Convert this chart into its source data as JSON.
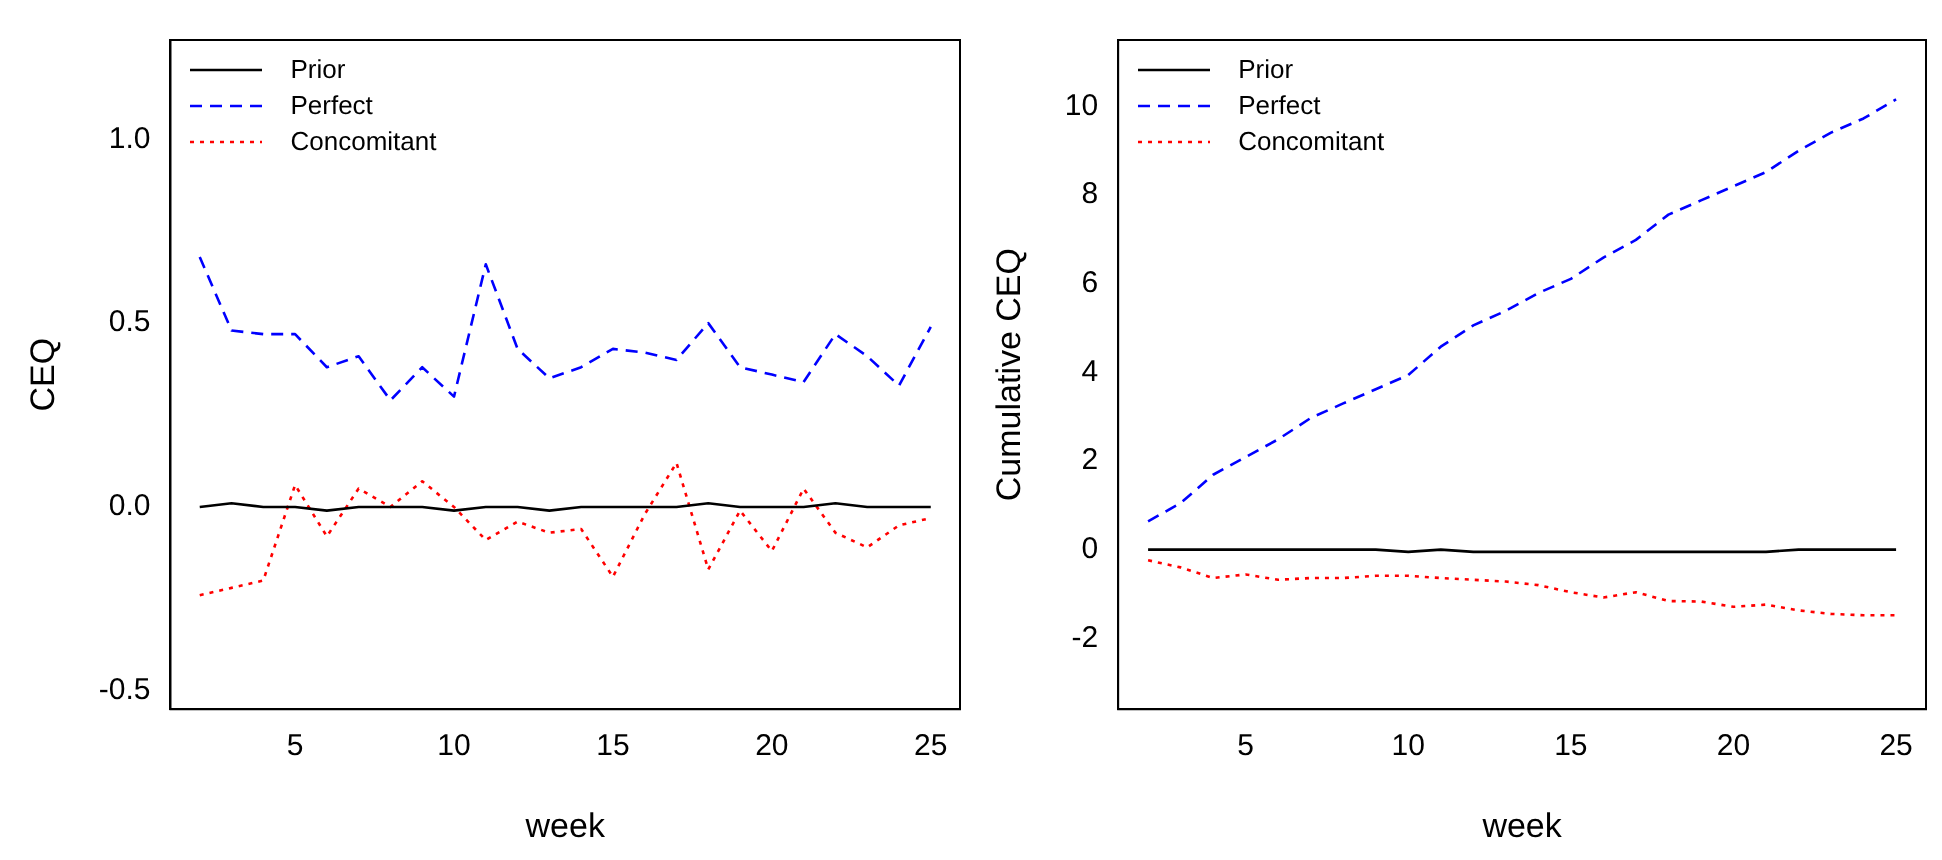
{
  "chart_data": [
    {
      "type": "line",
      "xlabel": "week",
      "ylabel": "CEQ",
      "x": [
        2,
        3,
        4,
        5,
        6,
        7,
        8,
        9,
        10,
        11,
        12,
        13,
        14,
        15,
        16,
        17,
        18,
        19,
        20,
        21,
        22,
        23,
        24,
        25
      ],
      "series": [
        {
          "name": "Prior",
          "color": "#000000",
          "line_style": "solid",
          "values": [
            0,
            0.01,
            0,
            0,
            -0.01,
            0,
            0,
            0,
            -0.01,
            0,
            0,
            -0.01,
            0,
            0,
            0,
            0,
            0.01,
            0,
            0,
            0,
            0.01,
            0,
            0,
            0
          ]
        },
        {
          "name": "Perfect",
          "color": "#0000ff",
          "line_style": "dashed",
          "values": [
            0.68,
            0.48,
            0.47,
            0.47,
            0.38,
            0.41,
            0.29,
            0.38,
            0.3,
            0.66,
            0.43,
            0.35,
            0.38,
            0.43,
            0.42,
            0.4,
            0.5,
            0.38,
            0.36,
            0.34,
            0.47,
            0.41,
            0.33,
            0.49
          ]
        },
        {
          "name": "Concomitant",
          "color": "#ff0000",
          "line_style": "dotted",
          "values": [
            -0.24,
            -0.22,
            -0.2,
            0.06,
            -0.08,
            0.05,
            0,
            0.07,
            0,
            -0.09,
            -0.04,
            -0.07,
            -0.06,
            -0.19,
            -0.02,
            0.12,
            -0.17,
            -0.01,
            -0.12,
            0.05,
            -0.07,
            -0.11,
            -0.05,
            -0.03
          ]
        }
      ],
      "xlim": [
        1.08,
        25.92
      ],
      "xticks": [
        5,
        10,
        15,
        20,
        25
      ],
      "ylim": [
        -0.55,
        1.27
      ],
      "yticks": [
        {
          "value": -0.5,
          "label": "-0.5"
        },
        {
          "value": 0,
          "label": "0.0"
        },
        {
          "value": 0.5,
          "label": "0.5"
        },
        {
          "value": 1,
          "label": "1.0"
        }
      ],
      "grid": false,
      "legend": "top left",
      "marker": "none"
    },
    {
      "type": "line",
      "xlabel": "week",
      "ylabel": "Cumulative CEQ",
      "x": [
        2,
        3,
        4,
        5,
        6,
        7,
        8,
        9,
        10,
        11,
        12,
        13,
        14,
        15,
        16,
        17,
        18,
        19,
        20,
        21,
        22,
        23,
        24,
        25
      ],
      "series": [
        {
          "name": "Prior",
          "color": "#000000",
          "line_style": "solid",
          "values": [
            0,
            0,
            0,
            0,
            0,
            0,
            0,
            0,
            -0.05,
            0,
            -0.05,
            -0.05,
            -0.05,
            -0.05,
            -0.05,
            -0.05,
            -0.05,
            -0.05,
            -0.05,
            -0.05,
            0,
            0,
            0,
            0
          ]
        },
        {
          "name": "Perfect",
          "color": "#0000ff",
          "line_style": "dashed",
          "values": [
            0.64,
            1.05,
            1.69,
            2.09,
            2.49,
            2.97,
            3.3,
            3.62,
            3.94,
            4.58,
            5.06,
            5.39,
            5.79,
            6.11,
            6.59,
            6.99,
            7.56,
            7.88,
            8.2,
            8.52,
            9.0,
            9.41,
            9.73,
            10.16
          ]
        },
        {
          "name": "Concomitant",
          "color": "#ff0000",
          "line_style": "dotted",
          "values": [
            -0.24,
            -0.4,
            -0.64,
            -0.56,
            -0.68,
            -0.64,
            -0.64,
            -0.59,
            -0.59,
            -0.64,
            -0.68,
            -0.72,
            -0.8,
            -0.96,
            -1.08,
            -0.96,
            -1.16,
            -1.17,
            -1.29,
            -1.24,
            -1.37,
            -1.45,
            -1.48,
            -1.48
          ]
        }
      ],
      "xlim": [
        1.08,
        25.92
      ],
      "xticks": [
        5,
        10,
        15,
        20,
        25
      ],
      "ylim": [
        -3.6,
        11.5
      ],
      "yticks": [
        -2,
        0,
        2,
        4,
        6,
        8,
        10
      ],
      "grid": false,
      "legend": "top left",
      "marker": "none"
    }
  ]
}
